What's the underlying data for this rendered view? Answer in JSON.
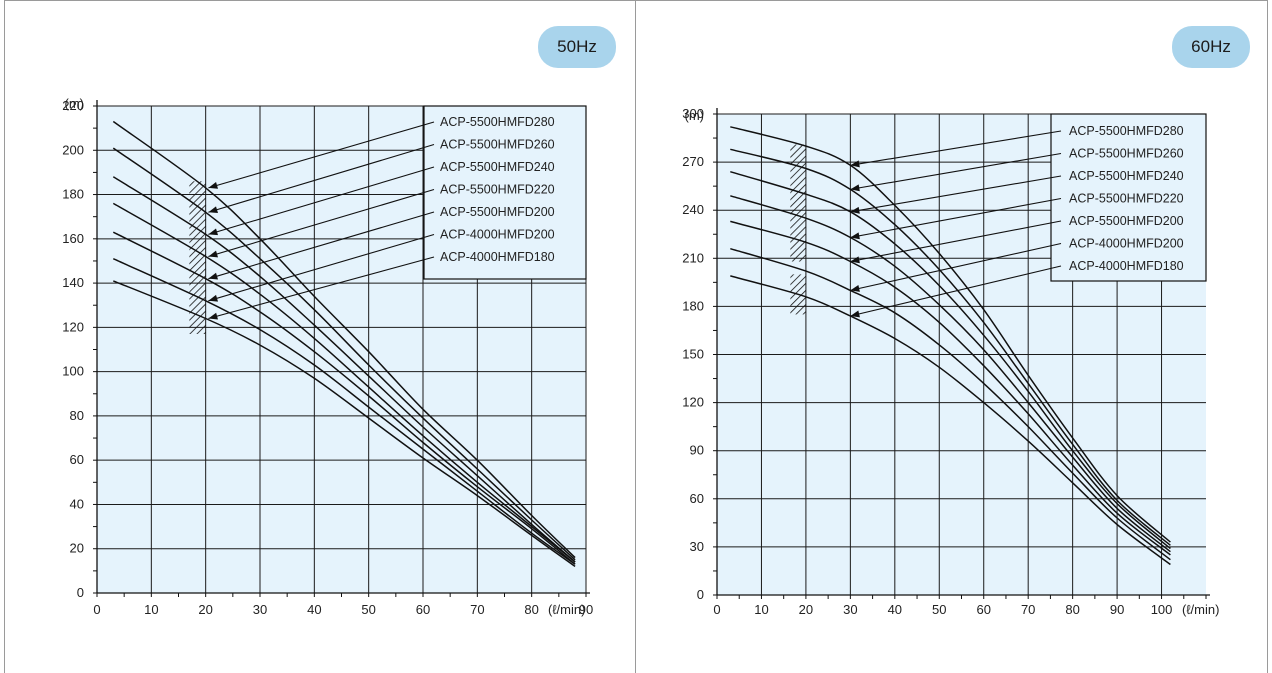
{
  "charts": [
    {
      "id": "chart-50",
      "badge": "50Hz",
      "chart_data": {
        "type": "line",
        "ylabel": "(m)",
        "xlabel": "(ℓ/min)",
        "xlim": [
          0,
          90
        ],
        "ylim": [
          0,
          220
        ],
        "xticks": [
          0,
          10,
          20,
          30,
          40,
          50,
          60,
          70,
          80,
          90
        ],
        "yticks": [
          0,
          20,
          40,
          60,
          80,
          100,
          120,
          140,
          160,
          180,
          200,
          220
        ],
        "grid": true,
        "legend_position": "top-right",
        "series": [
          {
            "name": "ACP-5500HMFD280",
            "x": [
              3,
              20,
              30,
              40,
              50,
              60,
              70,
              80,
              88
            ],
            "y": [
              213,
              183,
              160,
              134,
              109,
              83,
              60,
              35,
              16
            ]
          },
          {
            "name": "ACP-5500HMFD260",
            "x": [
              3,
              20,
              30,
              40,
              50,
              60,
              70,
              80,
              88
            ],
            "y": [
              201,
              172,
              151,
              128,
              103,
              79,
              56,
              33,
              15
            ]
          },
          {
            "name": "ACP-5500HMFD240",
            "x": [
              3,
              20,
              30,
              40,
              50,
              60,
              70,
              80,
              88
            ],
            "y": [
              188,
              162,
              143,
              121,
              98,
              75,
              53,
              31,
              14
            ]
          },
          {
            "name": "ACP-5500HMFD220",
            "x": [
              3,
              20,
              30,
              40,
              50,
              60,
              70,
              80,
              88
            ],
            "y": [
              176,
              152,
              135,
              115,
              93,
              71,
              50,
              30,
              14
            ]
          },
          {
            "name": "ACP-5500HMFD200",
            "x": [
              3,
              20,
              30,
              40,
              50,
              60,
              70,
              80,
              88
            ],
            "y": [
              163,
              142,
              127,
              109,
              89,
              68,
              48,
              29,
              13
            ]
          },
          {
            "name": "ACP-4000HMFD200",
            "x": [
              3,
              20,
              30,
              40,
              50,
              60,
              70,
              80,
              88
            ],
            "y": [
              151,
              132,
              119,
              103,
              84,
              65,
              46,
              27,
              13
            ]
          },
          {
            "name": "ACP-4000HMFD180",
            "x": [
              3,
              20,
              30,
              40,
              50,
              60,
              70,
              80,
              88
            ],
            "y": [
              141,
              124,
              112,
              97,
              79,
              61,
              44,
              26,
              12
            ]
          }
        ],
        "hatch_ranges": [
          {
            "x": [
              17,
              20
            ],
            "y": [
              117,
              186
            ]
          }
        ]
      }
    },
    {
      "id": "chart-60",
      "badge": "60Hz",
      "chart_data": {
        "type": "line",
        "ylabel": "(m)",
        "xlabel": "(ℓ/min)",
        "xlim": [
          0,
          110
        ],
        "ylim": [
          0,
          300
        ],
        "xticks": [
          0,
          10,
          20,
          30,
          40,
          50,
          60,
          70,
          80,
          90,
          100
        ],
        "yticks": [
          0,
          30,
          60,
          90,
          120,
          150,
          180,
          210,
          240,
          270,
          300
        ],
        "grid": true,
        "legend_position": "top-right",
        "series": [
          {
            "name": "ACP-5500HMFD280",
            "x": [
              3,
              20,
              30,
              40,
              50,
              60,
              70,
              80,
              90,
              102
            ],
            "y": [
              292,
              280,
              268,
              243,
              213,
              178,
              137,
              98,
              62,
              33
            ]
          },
          {
            "name": "ACP-5500HMFD260",
            "x": [
              3,
              20,
              30,
              40,
              50,
              60,
              70,
              80,
              90,
              102
            ],
            "y": [
              278,
              266,
              253,
              231,
              203,
              170,
              132,
              94,
              59,
              31
            ]
          },
          {
            "name": "ACP-5500HMFD240",
            "x": [
              3,
              20,
              30,
              40,
              50,
              60,
              70,
              80,
              90,
              102
            ],
            "y": [
              264,
              250,
              239,
              219,
              193,
              162,
              127,
              90,
              57,
              29
            ]
          },
          {
            "name": "ACP-5500HMFD220",
            "x": [
              3,
              20,
              30,
              40,
              50,
              60,
              70,
              80,
              90,
              102
            ],
            "y": [
              249,
              235,
              223,
              205,
              181,
              153,
              120,
              86,
              54,
              27
            ]
          },
          {
            "name": "ACP-5500HMFD200",
            "x": [
              3,
              20,
              30,
              40,
              50,
              60,
              70,
              80,
              90,
              102
            ],
            "y": [
              233,
              220,
              208,
              192,
              170,
              143,
              113,
              81,
              51,
              25
            ]
          },
          {
            "name": "ACP-4000HMFD200",
            "x": [
              3,
              20,
              30,
              40,
              50,
              60,
              70,
              80,
              90,
              102
            ],
            "y": [
              216,
              202,
              190,
              176,
              156,
              132,
              105,
              76,
              48,
              22
            ]
          },
          {
            "name": "ACP-4000HMFD180",
            "x": [
              3,
              20,
              30,
              40,
              50,
              60,
              70,
              80,
              90,
              102
            ],
            "y": [
              199,
              186,
              174,
              160,
              142,
              120,
              96,
              70,
              44,
              19
            ]
          }
        ],
        "hatch_ranges": [
          {
            "x": [
              16.5,
              20
            ],
            "y": [
              208,
              281
            ]
          },
          {
            "x": [
              16.5,
              20
            ],
            "y": [
              175,
              200
            ]
          }
        ]
      }
    }
  ],
  "colors": {
    "plot_bg": "#e5f3fc",
    "grid": "#1a1a1a",
    "curve": "#111111",
    "badge": "#a9d4ec"
  }
}
